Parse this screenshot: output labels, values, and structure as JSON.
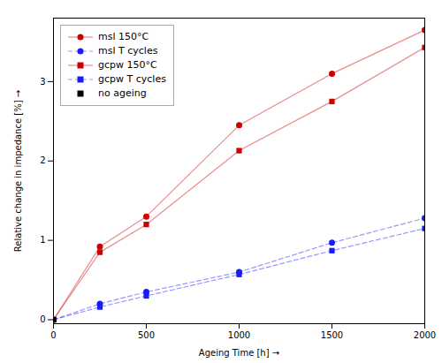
{
  "chart_data": {
    "type": "line",
    "x": [
      0,
      250,
      500,
      1000,
      1500,
      2000
    ],
    "series": [
      {
        "name": "msl 150°C",
        "color": "#cc0000",
        "marker": "circle",
        "line_style": "solid",
        "values": [
          0,
          0.92,
          1.3,
          2.45,
          3.1,
          3.65
        ]
      },
      {
        "name": "msl T cycles",
        "color": "#1a1aff",
        "marker": "circle",
        "line_style": "dashed",
        "values": [
          0,
          0.2,
          0.35,
          0.6,
          0.97,
          1.28
        ]
      },
      {
        "name": "gcpw 150°C",
        "color": "#cc0000",
        "marker": "square",
        "line_style": "solid",
        "values": [
          0,
          0.85,
          1.2,
          2.13,
          2.75,
          3.43
        ]
      },
      {
        "name": "gcpw T cycles",
        "color": "#1a1aff",
        "marker": "square",
        "line_style": "dashed",
        "values": [
          0,
          0.16,
          0.3,
          0.57,
          0.87,
          1.15
        ]
      },
      {
        "name": "no ageing",
        "type": "scatter",
        "color": "#000000",
        "marker": "square",
        "values": [
          0.0,
          null,
          null,
          null,
          null,
          null
        ]
      }
    ],
    "xlabel": "Ageing Time [h]",
    "ylabel": "Relative change in impedance [%]",
    "xlim": [
      0,
      2000
    ],
    "ylim": [
      -0.05,
      3.8
    ],
    "xticks": [
      0,
      500,
      1000,
      1500,
      2000
    ],
    "yticks": [
      0,
      1,
      2,
      3
    ],
    "grid": false,
    "legend": "upper left"
  }
}
